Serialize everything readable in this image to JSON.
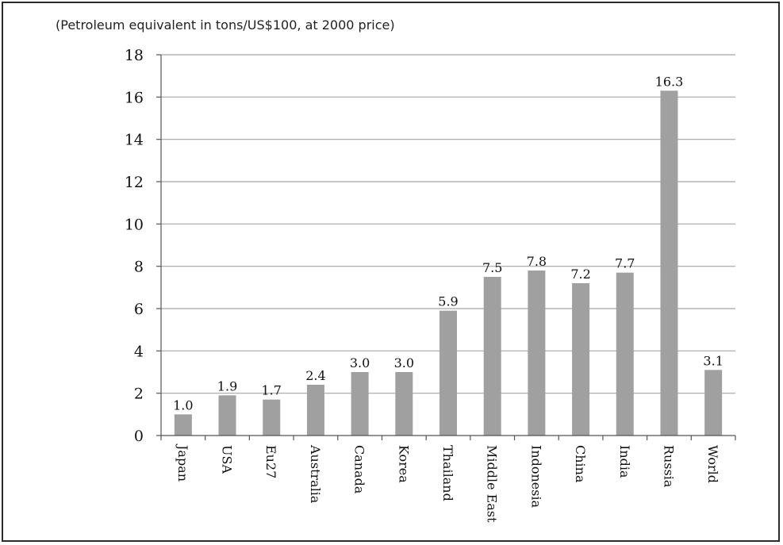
{
  "chart_data": {
    "type": "bar",
    "title": "",
    "subtitle": "(Petroleum equivalent in tons/US$100, at 2000 price)",
    "xlabel": "",
    "ylabel": "",
    "categories": [
      "Japan",
      "USA",
      "Eu27",
      "Australia",
      "Canada",
      "Korea",
      "Thailand",
      "Middle East",
      "Indonesia",
      "China",
      "India",
      "Russia",
      "World"
    ],
    "values": [
      1.0,
      1.9,
      1.7,
      2.4,
      3.0,
      3.0,
      5.9,
      7.5,
      7.8,
      7.2,
      7.7,
      16.3,
      3.1
    ],
    "value_labels": [
      "1.0",
      "1.9",
      "1.7",
      "2.4",
      "3.0",
      "3.0",
      "5.9",
      "7.5",
      "7.8",
      "7.2",
      "7.7",
      "16.3",
      "3.1"
    ],
    "ylim": [
      0,
      18
    ],
    "yticks": [
      0,
      2,
      4,
      6,
      8,
      10,
      12,
      14,
      16,
      18
    ],
    "grid": true,
    "legend": "none",
    "bar_color": "#a0a0a0",
    "grid_color": "#a6a6a6"
  }
}
